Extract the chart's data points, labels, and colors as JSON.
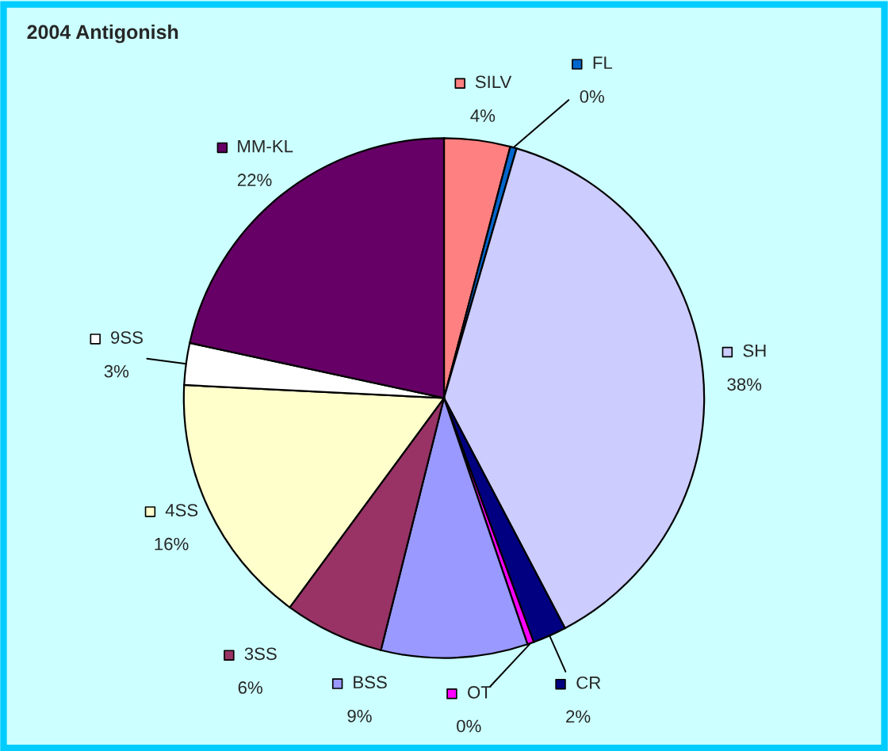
{
  "chart_data": {
    "type": "pie",
    "title": "2004 Antigonish",
    "categories": [
      "SILV",
      "FL",
      "SH",
      "CR",
      "OT",
      "BSS",
      "3SS",
      "4SS",
      "9SS",
      "MM-KL"
    ],
    "values": [
      4.1,
      0.4,
      37.8,
      2.1,
      0.4,
      9.1,
      6.2,
      15.7,
      2.6,
      21.6
    ],
    "value_labels": [
      "4%",
      "0%",
      "38%",
      "2%",
      "0%",
      "9%",
      "6%",
      "16%",
      "3%",
      "22%"
    ],
    "colors": [
      "#ff8080",
      "#0066cc",
      "#ccccff",
      "#000080",
      "#ff00ff",
      "#9999ff",
      "#993366",
      "#ffffcc",
      "#ffffff",
      "#660066"
    ],
    "legend": true
  }
}
